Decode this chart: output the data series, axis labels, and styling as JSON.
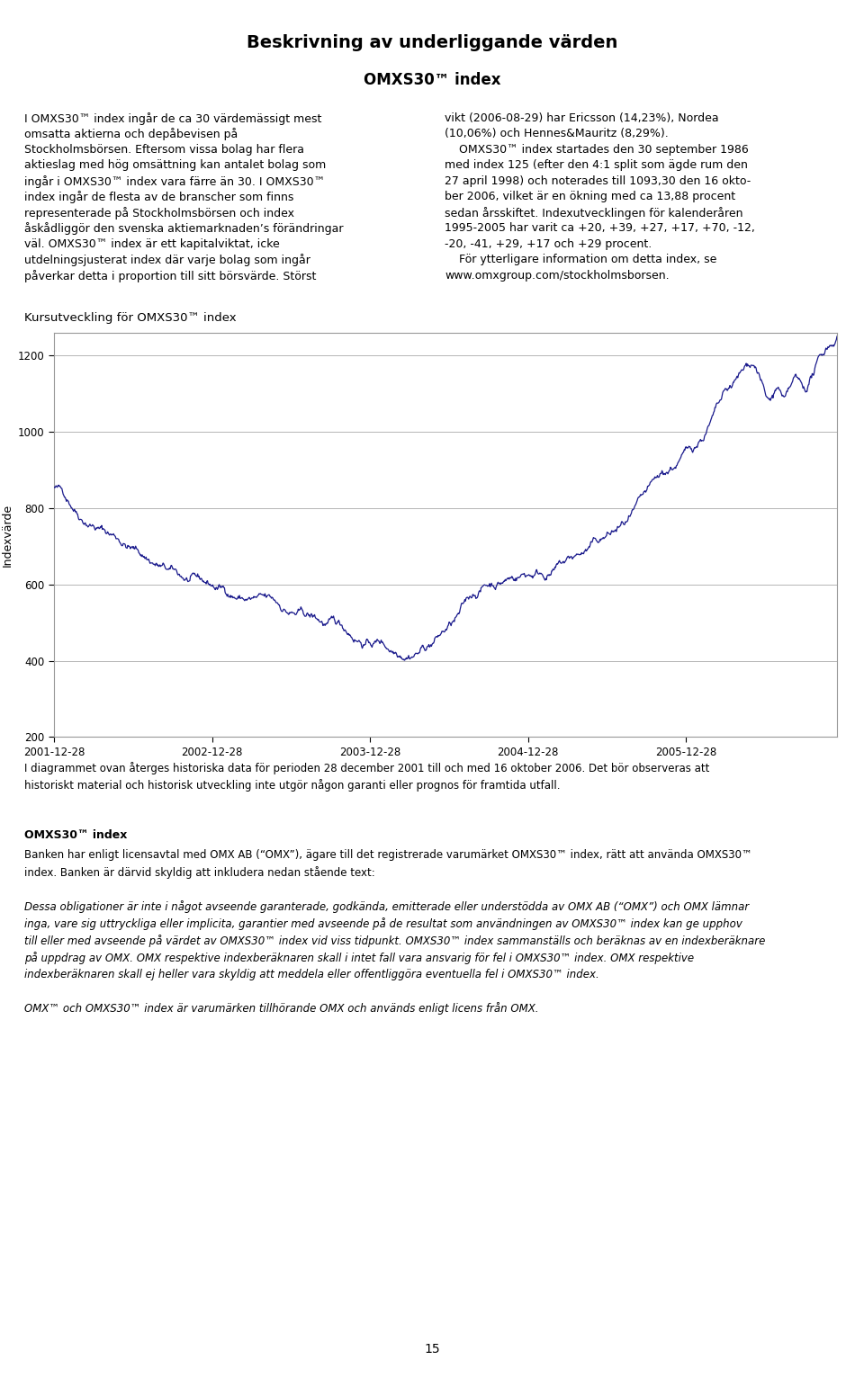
{
  "page_title": "Beskrivning av underliggande värden",
  "subtitle": "OMXS30™ index",
  "chart_title": "Kursutveckling för OMXS30™ index",
  "ylabel": "Indexvärde",
  "yticks": [
    200,
    400,
    600,
    800,
    1000,
    1200
  ],
  "xtick_labels": [
    "2001-12-28",
    "2002-12-28",
    "2003-12-28",
    "2004-12-28",
    "2005-12-28"
  ],
  "line_color": "#1a1a8c",
  "line_width": 0.9,
  "below_chart_text_line1": "I diagrammet ovan återges historiska data för perioden 28 december 2001 till och med 16 oktober 2006. Det bör observeras att",
  "below_chart_text_line2": "historiskt material och historisk utveckling inte utgör någon garanti eller prognos för framtida utfall.",
  "omxs_bold_title": "OMXS30™ index",
  "omxs_paragraph1_line1": "Banken har enligt licensavtal med OMX AB (“OMX”), ägare till det registrerade varumärket OMXS30™ index, rätt att använda OMXS30™",
  "omxs_paragraph1_line2": "index. Banken är därvid skyldig att inkludera nedan stående text:",
  "omxs_italic_lines": [
    "Dessa obligationer är inte i något avseende garanterade, godkända, emitterade eller understödda av OMX AB (“OMX”) och OMX lämnar",
    "inga, vare sig uttryckliga eller implicita, garantier med avseende på de resultat som användningen av OMXS30™ index kan ge upphov",
    "till eller med avseende på värdet av OMXS30™ index vid viss tidpunkt. OMXS30™ index sammanställs och beräknas av en indexberäknare",
    "på uppdrag av OMX. OMX respektive indexberäknaren skall i intet fall vara ansvarig för fel i OMXS30™ index. OMX respektive",
    "indexberäknaren skall ej heller vara skyldig att meddela eller offentliggöra eventuella fel i OMXS30™ index."
  ],
  "omxs_last_line": "OMX™ och OMXS30™ index är varumärken tillhörande OMX och används enligt licens från OMX.",
  "page_number": "15",
  "background_color": "#ffffff",
  "text_color": "#000000",
  "chart_bg": "#ffffff",
  "grid_color": "#aaaaaa",
  "border_color": "#999999",
  "topbar_color": "#999999",
  "left_col_lines": [
    "I OMXS30™ index ingår de ca 30 värdemässigt mest",
    "omsatta aktierna och depåbevisen på",
    "Stockholmsbörsen. Eftersom vissa bolag har flera",
    "aktieslag med hög omsättning kan antalet bolag som",
    "ingår i OMXS30™ index vara färre än 30. I OMXS30™",
    "index ingår de flesta av de branscher som finns",
    "representerade på Stockholmsbörsen och index",
    "åskådliggör den svenska aktiemarknaden’s förändringar",
    "väl. OMXS30™ index är ett kapitalviktat, icke",
    "utdelningsjusterat index där varje bolag som ingår",
    "påverkar detta i proportion till sitt börsvärde. Störst"
  ],
  "right_col_lines": [
    "vikt (2006-08-29) har Ericsson (14,23%), Nordea",
    "(10,06%) och Hennes&Mauritz (8,29%).",
    "    OMXS30™ index startades den 30 september 1986",
    "med index 125 (efter den 4:1 split som ägde rum den",
    "27 april 1998) och noterades till 1093,30 den 16 okto-",
    "ber 2006, vilket är en ökning med ca 13,88 procent",
    "sedan årsskiftet. Indexutvecklingen för kalenderåren",
    "1995-2005 har varit ca +20, +39, +27, +17, +70, -12,",
    "-20, -41, +29, +17 och +29 procent.",
    "    För ytterligare information om detta index, se",
    "www.omxgroup.com/stockholmsborsen."
  ]
}
